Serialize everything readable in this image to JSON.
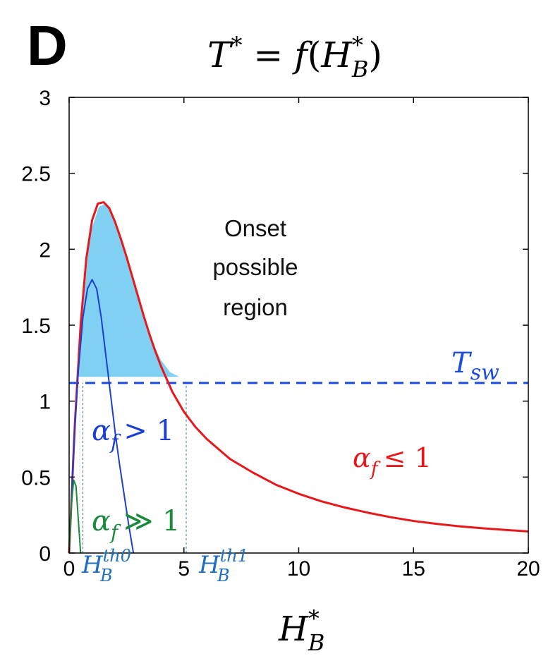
{
  "panel_letter": "D",
  "title_parts": {
    "T": "T",
    "star": "*",
    "eq": "=",
    "f": "f",
    "open": "(",
    "H": "H",
    "sub": "B",
    "close": ")"
  },
  "xlabel_parts": {
    "H": "H",
    "star": "*",
    "sub": "B"
  },
  "chart_data": {
    "type": "line",
    "xlim": [
      0,
      20
    ],
    "ylim": [
      0,
      3
    ],
    "x_ticks": [
      0,
      5,
      10,
      15,
      20
    ],
    "x_tick_labels": [
      "0",
      "5",
      "10",
      "15",
      "20"
    ],
    "y_ticks": [
      0,
      0.5,
      1,
      1.5,
      2,
      2.5,
      3
    ],
    "y_tick_labels": [
      "0",
      "0.5",
      "1",
      "1.5",
      "2",
      "2.5",
      "3"
    ],
    "series": [
      {
        "key": "red",
        "color": "#e8171b",
        "x": [
          0,
          0.25,
          0.5,
          0.75,
          1.0,
          1.25,
          1.5,
          1.75,
          2.0,
          2.25,
          2.5,
          2.75,
          3.0,
          3.25,
          3.5,
          3.75,
          4.0,
          4.5,
          5.0,
          5.5,
          6.0,
          7.0,
          8.0,
          9.0,
          10.0,
          11.0,
          12.0,
          13.0,
          14.0,
          15.0,
          16.0,
          17.0,
          18.0,
          19.0,
          20.0
        ],
        "y": [
          0,
          0.85,
          1.5,
          1.94,
          2.19,
          2.3,
          2.31,
          2.27,
          2.18,
          2.07,
          1.95,
          1.82,
          1.69,
          1.56,
          1.44,
          1.33,
          1.23,
          1.06,
          0.93,
          0.83,
          0.75,
          0.62,
          0.53,
          0.45,
          0.39,
          0.34,
          0.3,
          0.266,
          0.236,
          0.211,
          0.192,
          0.176,
          0.163,
          0.152,
          0.142
        ]
      },
      {
        "key": "blue",
        "color": "#1b3fd0",
        "x": [
          0,
          0.2,
          0.4,
          0.6,
          0.8,
          1.0,
          1.2,
          1.4,
          1.6,
          1.8,
          2.0,
          2.2,
          2.4,
          2.6,
          2.8
        ],
        "y": [
          0,
          0.7,
          1.2,
          1.55,
          1.74,
          1.8,
          1.74,
          1.55,
          1.3,
          1.05,
          0.8,
          0.58,
          0.38,
          0.18,
          0
        ]
      },
      {
        "key": "green",
        "color": "#1b8a3c",
        "x": [
          0,
          0.1,
          0.2,
          0.3,
          0.4,
          0.5
        ],
        "y": [
          0,
          0.32,
          0.48,
          0.44,
          0.22,
          0
        ]
      }
    ],
    "threshold": {
      "y": 1.12,
      "color": "#1b4be0"
    },
    "vlines": [
      {
        "x": 0.6,
        "ymax": 1.12
      },
      {
        "x": 5.1,
        "ymax": 1.12
      }
    ],
    "shaded_region": {
      "color": "#7fd0f2",
      "points": [
        [
          0.35,
          1.18
        ],
        [
          0.9,
          2.1
        ],
        [
          1.3,
          2.28
        ],
        [
          1.6,
          2.3
        ],
        [
          2.0,
          2.2
        ],
        [
          2.4,
          2.0
        ],
        [
          2.8,
          1.78
        ],
        [
          3.2,
          1.57
        ],
        [
          3.6,
          1.4
        ],
        [
          4.0,
          1.27
        ],
        [
          4.4,
          1.19
        ],
        [
          4.8,
          1.16
        ],
        [
          4.8,
          1.16
        ],
        [
          0.35,
          1.16
        ]
      ]
    },
    "annotations": {
      "onset": [
        "Onset",
        "possible",
        "region"
      ],
      "tsw": {
        "T": "T",
        "sub": "sw"
      },
      "alpha_gt": {
        "a": "α",
        "sub": "f",
        "rel": "> 1"
      },
      "alpha_le": {
        "a": "α",
        "sub": "f",
        "rel": "≤ 1"
      },
      "alpha_gg": {
        "a": "α",
        "sub": "f",
        "rel": "≫ 1"
      },
      "hth0": {
        "H": "H",
        "sup": "th0",
        "sub": "B"
      },
      "hth1": {
        "H": "H",
        "sup": "th1",
        "sub": "B"
      }
    }
  }
}
